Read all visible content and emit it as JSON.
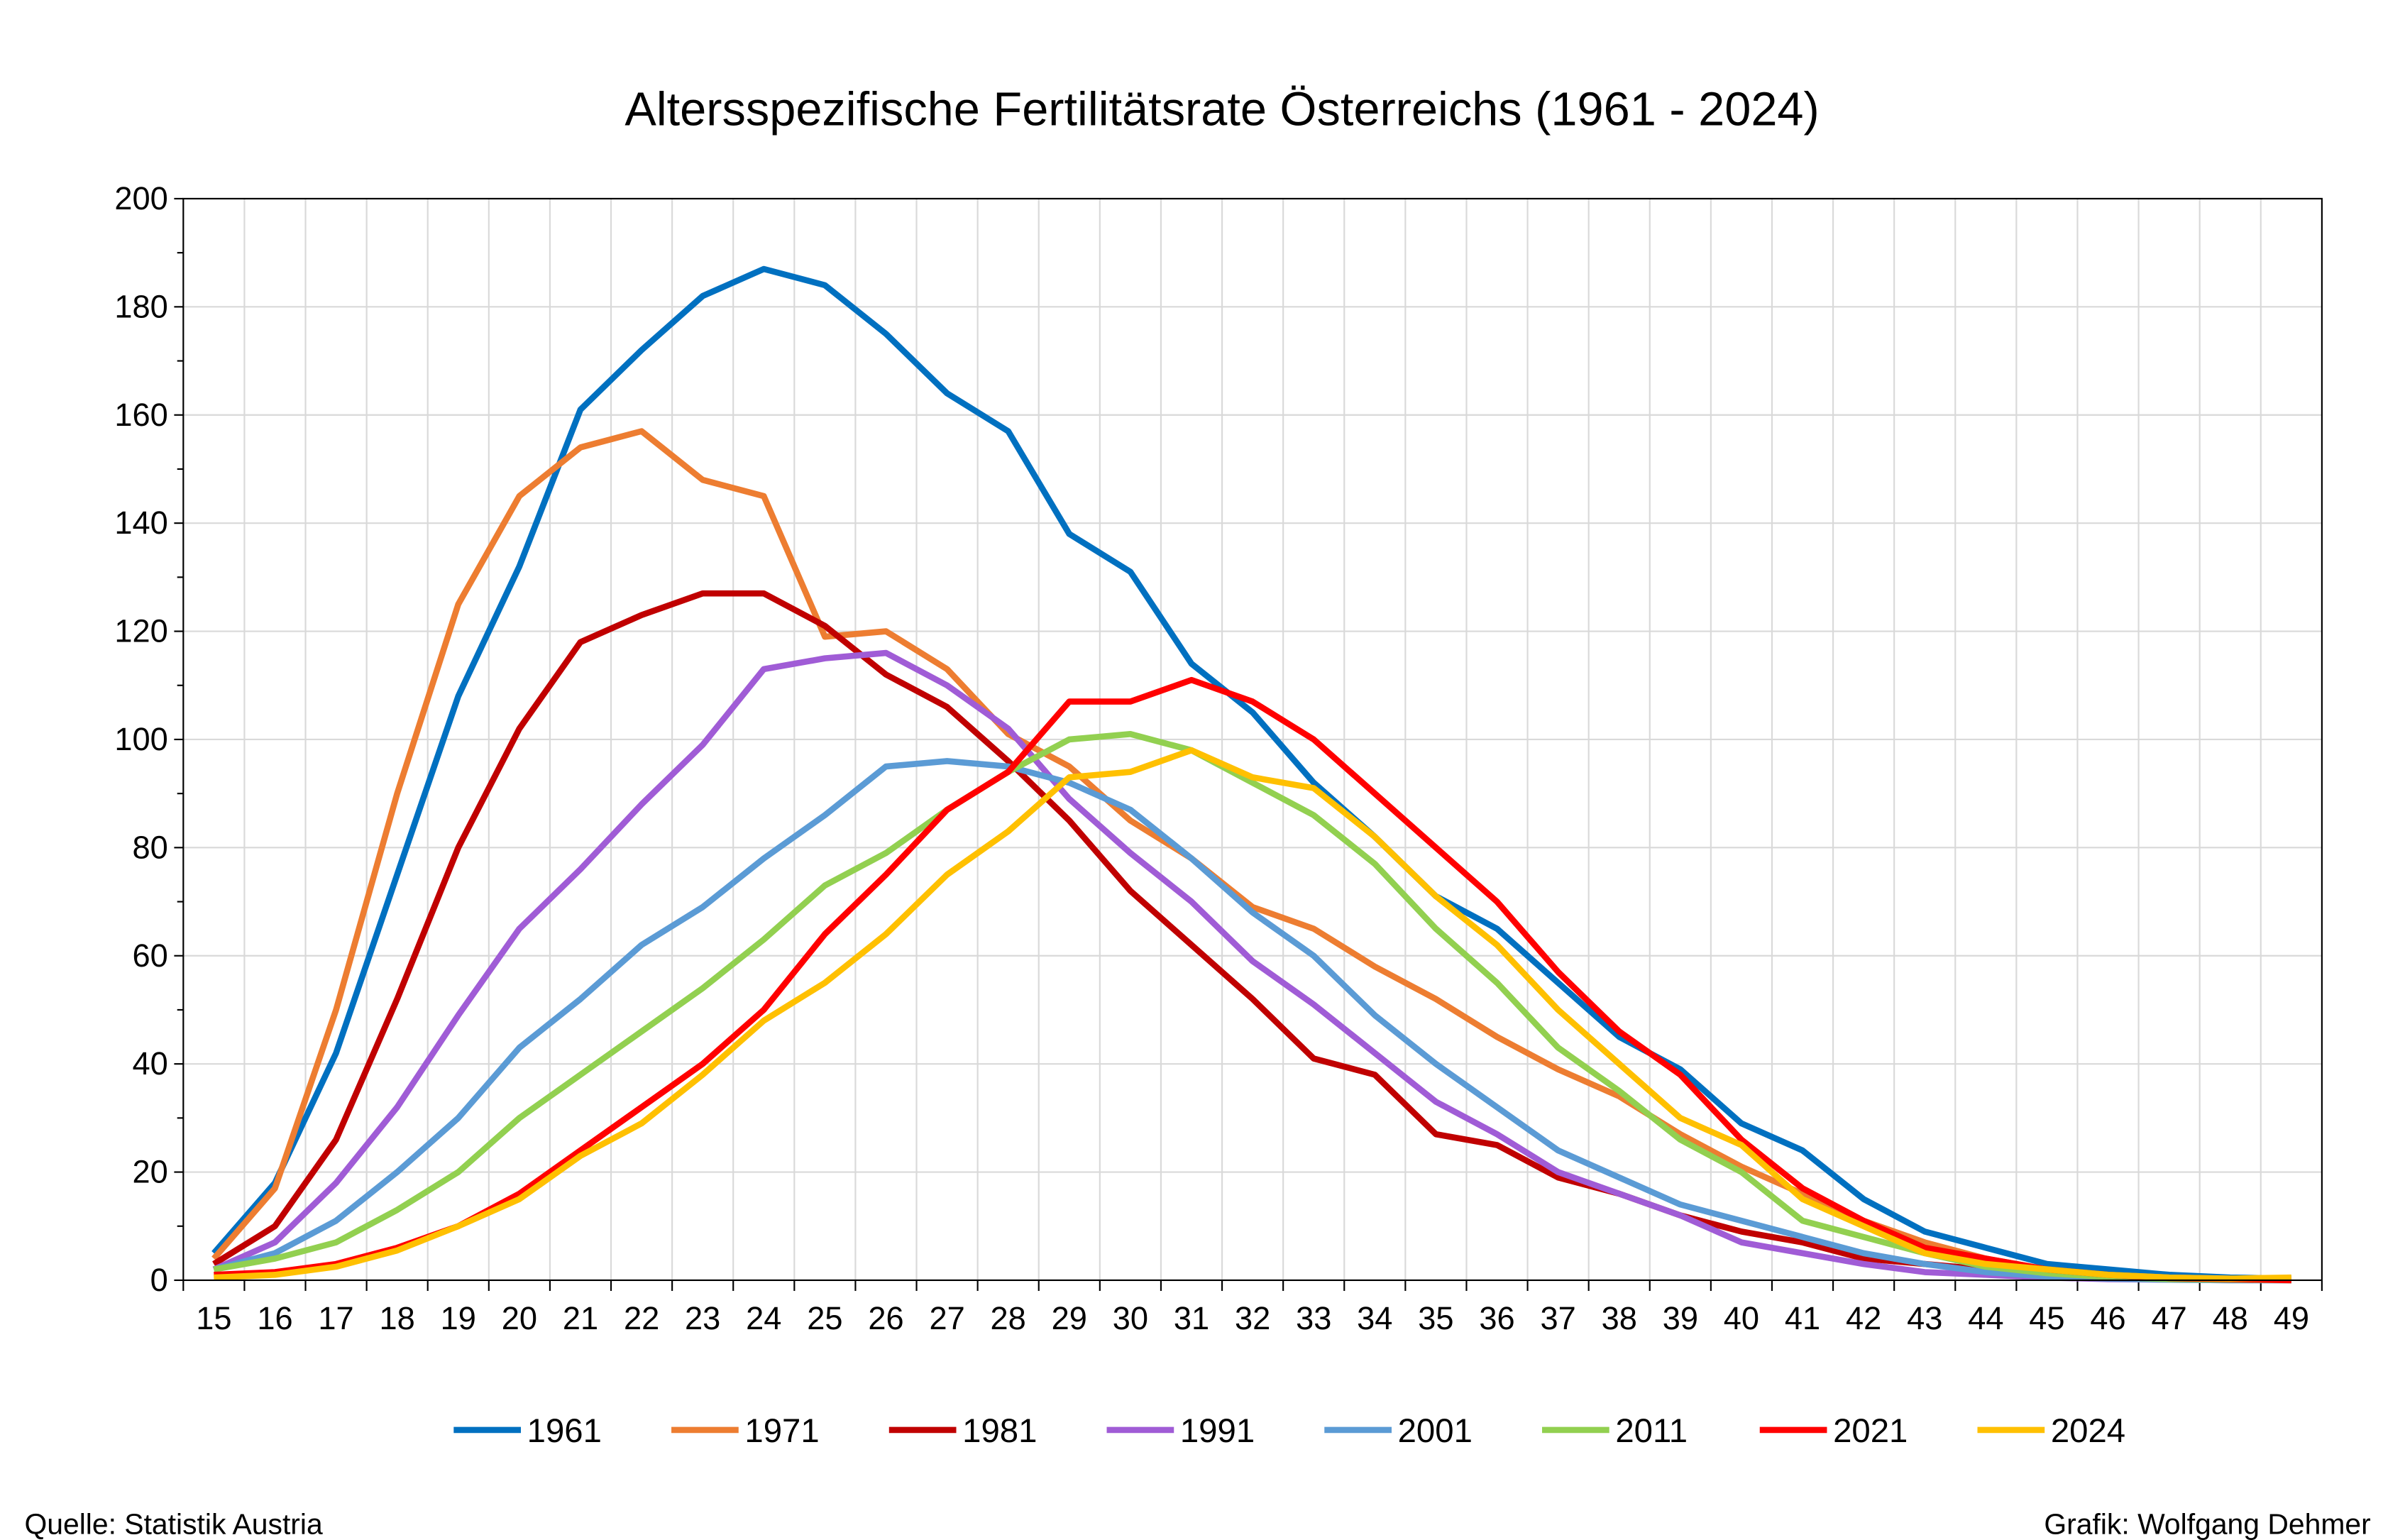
{
  "chart_data": {
    "type": "line",
    "title": "Altersspezifische Fertilitätsrate Österreichs (1961 - 2024)",
    "xlabel": "",
    "ylabel": "",
    "ylim": [
      0,
      200
    ],
    "yticks": [
      "0",
      "20",
      "40",
      "60",
      "80",
      "100",
      "120",
      "140",
      "160",
      "180",
      "200"
    ],
    "grid": true,
    "legend_position": "bottom",
    "x": [
      "15",
      "16",
      "17",
      "18",
      "19",
      "20",
      "21",
      "22",
      "23",
      "24",
      "25",
      "26",
      "27",
      "28",
      "29",
      "30",
      "31",
      "32",
      "33",
      "34",
      "35",
      "36",
      "37",
      "38",
      "39",
      "40",
      "41",
      "42",
      "43",
      "44",
      "45",
      "46",
      "47",
      "48",
      "49"
    ],
    "series": [
      {
        "name": "1961",
        "color": "#0070C0",
        "values": [
          5,
          18,
          42,
          75,
          108,
          132,
          161,
          172,
          182,
          187,
          184,
          175,
          164,
          157,
          138,
          131,
          114,
          105,
          92,
          82,
          71,
          65,
          55,
          45,
          39,
          29,
          24,
          15,
          9,
          6,
          3,
          2,
          1,
          0.5,
          0.3
        ]
      },
      {
        "name": "1971",
        "color": "#ED7D31",
        "values": [
          4,
          17,
          50,
          90,
          125,
          145,
          154,
          157,
          148,
          145,
          119,
          120,
          113,
          101,
          95,
          85,
          78,
          69,
          65,
          58,
          52,
          45,
          39,
          34,
          27,
          21,
          16,
          11,
          7,
          4,
          2,
          1,
          0.5,
          0.3,
          0.1
        ]
      },
      {
        "name": "1981",
        "color": "#C00000",
        "values": [
          3,
          10,
          26,
          52,
          80,
          102,
          118,
          123,
          127,
          127,
          121,
          112,
          106,
          96,
          85,
          72,
          62,
          52,
          41,
          38,
          27,
          25,
          19,
          16,
          12,
          9,
          7,
          4,
          3,
          2,
          1,
          0.5,
          0.2,
          0.1,
          0
        ]
      },
      {
        "name": "1991",
        "color": "#A05CD6",
        "values": [
          2,
          7,
          18,
          32,
          49,
          65,
          76,
          88,
          99,
          113,
          115,
          116,
          110,
          102,
          89,
          79,
          70,
          59,
          51,
          42,
          33,
          27,
          20,
          16,
          12,
          7,
          5,
          3,
          1.5,
          1,
          0.5,
          0.2,
          0.1,
          0,
          0
        ]
      },
      {
        "name": "2001",
        "color": "#5B9BD5",
        "values": [
          2,
          5,
          11,
          20,
          30,
          43,
          52,
          62,
          69,
          78,
          86,
          95,
          96,
          95,
          92,
          87,
          78,
          68,
          60,
          49,
          40,
          32,
          24,
          19,
          14,
          11,
          8,
          5,
          3,
          1.5,
          0.7,
          0.3,
          0.1,
          0,
          0
        ]
      },
      {
        "name": "2011",
        "color": "#92D050",
        "values": [
          2,
          4,
          7,
          13,
          20,
          30,
          38,
          46,
          54,
          63,
          73,
          79,
          87,
          94,
          100,
          101,
          98,
          92,
          86,
          77,
          65,
          55,
          43,
          35,
          26,
          20,
          11,
          8,
          5,
          2.5,
          1.3,
          0.6,
          0.2,
          0.1,
          0
        ]
      },
      {
        "name": "2021",
        "color": "#FF0000",
        "values": [
          1,
          1.5,
          3,
          6,
          10,
          16,
          24,
          32,
          40,
          50,
          64,
          75,
          87,
          94,
          107,
          107,
          111,
          107,
          100,
          90,
          80,
          70,
          57,
          46,
          38,
          26,
          17,
          11,
          6,
          4,
          2,
          1,
          0.4,
          0.2,
          0
        ]
      },
      {
        "name": "2024",
        "color": "#FFC000",
        "values": [
          0.5,
          1,
          2.5,
          5.5,
          10,
          15,
          23,
          29,
          38,
          48,
          55,
          64,
          75,
          83,
          93,
          94,
          98,
          93,
          91,
          82,
          71,
          62,
          50,
          40,
          30,
          25,
          15,
          10,
          5,
          3,
          2,
          1,
          0.5,
          0.3,
          0.5
        ]
      }
    ]
  },
  "footer": {
    "source": "Quelle: Statistik Austria",
    "credit": "Grafik: Wolfgang Dehmer"
  }
}
